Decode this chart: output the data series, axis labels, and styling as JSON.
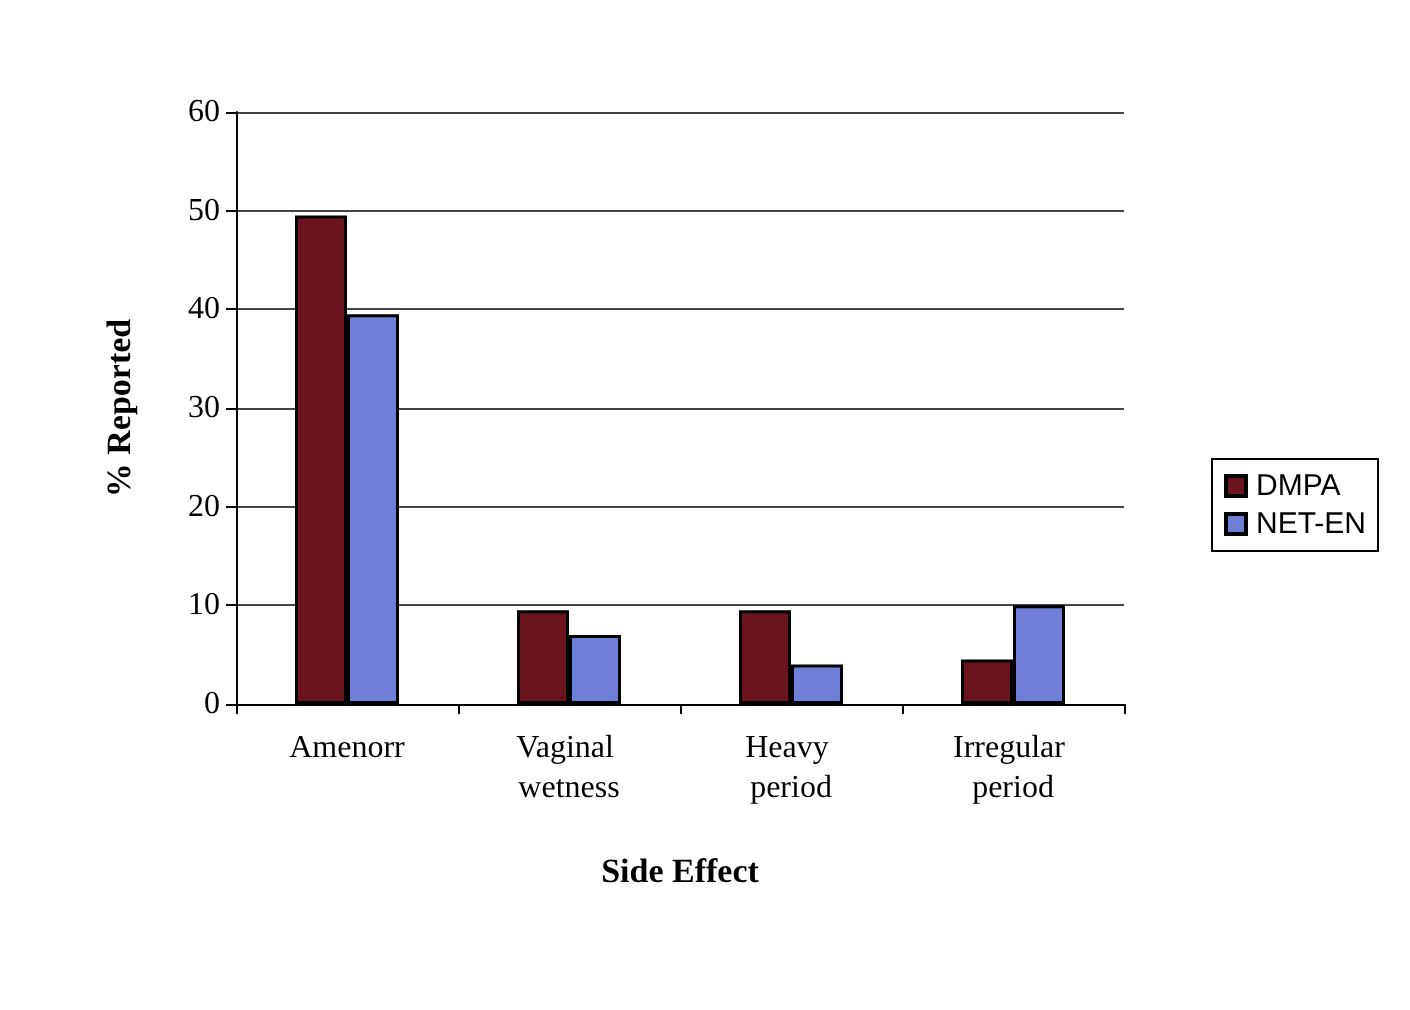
{
  "chart_data": {
    "type": "bar",
    "xlabel": "Side Effect",
    "ylabel": "% Reported",
    "categories": [
      "Amenorr",
      "Vaginal wetness",
      "Heavy period",
      "Irregular period"
    ],
    "series": [
      {
        "name": "DMPA",
        "color": "#6b1420",
        "values": [
          49.5,
          9.5,
          9.5,
          4.5
        ]
      },
      {
        "name": "NET-EN",
        "color": "#6f7fd8",
        "values": [
          39.5,
          7,
          4,
          10
        ]
      }
    ],
    "ylim": [
      0,
      60
    ],
    "yticks": [
      0,
      10,
      20,
      30,
      40,
      50,
      60
    ],
    "grid": "y",
    "legend": "right"
  }
}
